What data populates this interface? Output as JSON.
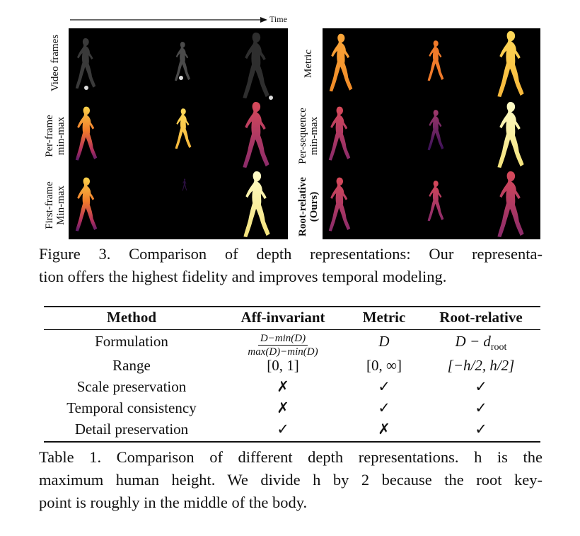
{
  "figure": {
    "time_label": "Time",
    "left_rows": [
      {
        "label_lines": [
          "Video frames"
        ],
        "bold": false
      },
      {
        "label_lines": [
          "Per-frame",
          "min-max"
        ],
        "bold": false
      },
      {
        "label_lines": [
          "First-frame",
          "Min-max"
        ],
        "bold": false
      }
    ],
    "right_rows": [
      {
        "label_lines": [
          "Metric"
        ],
        "bold": false
      },
      {
        "label_lines": [
          "Per-sequence",
          "min-max"
        ],
        "bold": false
      },
      {
        "label_lines": [
          "Root-relative",
          "(Ours)"
        ],
        "bold": true
      }
    ],
    "caption_lines": [
      "Figure 3.  Comparison of depth representations: Our representa-",
      "tion offers the highest fidelity and improves temporal modeling."
    ]
  },
  "table": {
    "headers": [
      "Method",
      "Aff-invariant",
      "Metric",
      "Root-relative"
    ],
    "formulation": {
      "label": "Formulation",
      "aff_num": "D−min(D)",
      "aff_den": "max(D)−min(D)",
      "metric": "D",
      "root_main": "D − d",
      "root_sub": "root"
    },
    "range": {
      "label": "Range",
      "aff": "[0, 1]",
      "metric": "[0, ∞]",
      "root": "[−h/2, h/2]"
    },
    "rows": [
      {
        "label": "Scale preservation",
        "values": [
          "✗",
          "✓",
          "✓"
        ]
      },
      {
        "label": "Temporal consistency",
        "values": [
          "✗",
          "✓",
          "✓"
        ]
      },
      {
        "label": "Detail preservation",
        "values": [
          "✓",
          "✗",
          "✓"
        ]
      }
    ],
    "caption_lines": [
      "Table 1.  Comparison of different depth representations.  h is the",
      "maximum human height.  We divide h by 2 because the root key-",
      "point is roughly in the middle of the body."
    ]
  }
}
